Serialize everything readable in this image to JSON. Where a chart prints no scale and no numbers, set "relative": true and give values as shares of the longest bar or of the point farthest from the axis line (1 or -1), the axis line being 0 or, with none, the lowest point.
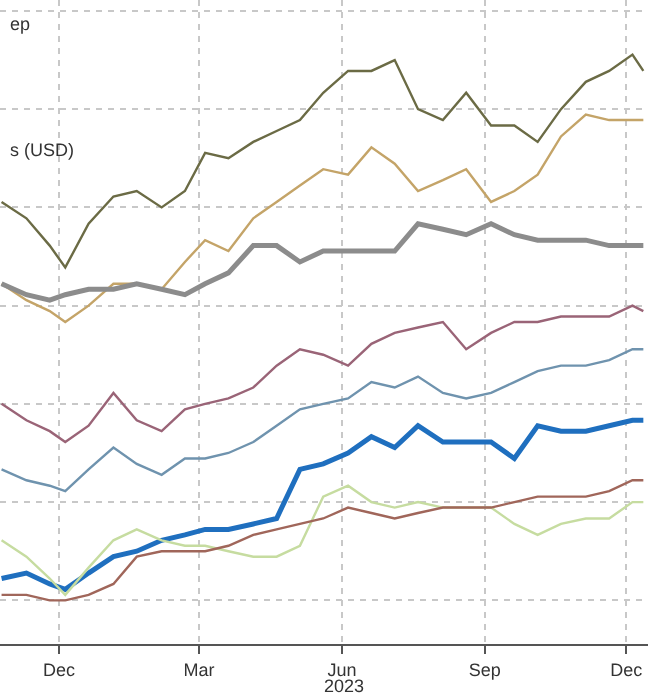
{
  "chart_data": {
    "type": "line",
    "relative": true,
    "grid": true,
    "x": [
      "2022-10-25",
      "2022-11-10",
      "2022-11-25",
      "2022-12-05",
      "2022-12-20",
      "2023-01-05",
      "2023-01-20",
      "2023-02-05",
      "2023-02-20",
      "2023-03-05",
      "2023-03-20",
      "2023-04-05",
      "2023-04-20",
      "2023-05-05",
      "2023-05-20",
      "2023-06-05",
      "2023-06-20",
      "2023-07-05",
      "2023-07-20",
      "2023-08-05",
      "2023-08-20",
      "2023-09-05",
      "2023-09-20",
      "2023-10-05",
      "2023-10-20",
      "2023-11-05",
      "2023-11-20",
      "2023-12-05",
      "2023-12-12"
    ],
    "xlim": [
      "2022-10-24",
      "2023-12-15"
    ],
    "xticks": [
      {
        "value": "2022-12-01",
        "label": "Dec"
      },
      {
        "value": "2023-03-01",
        "label": "Mar"
      },
      {
        "value": "2023-06-01",
        "label": "Jun"
      },
      {
        "value": "2023-09-01",
        "label": "Sep"
      },
      {
        "value": "2023-12-01",
        "label": "Dec"
      }
    ],
    "annotations": [
      "ep",
      "s (USD)",
      "2023"
    ],
    "series": [
      {
        "color": "#6b6b45",
        "values": [
          0.73,
          0.7,
          0.65,
          0.61,
          0.69,
          0.74,
          0.75,
          0.72,
          0.75,
          0.82,
          0.81,
          0.84,
          0.86,
          0.88,
          0.93,
          0.97,
          0.97,
          0.99,
          0.9,
          0.88,
          0.93,
          0.87,
          0.87,
          0.84,
          0.9,
          0.95,
          0.97,
          1.0,
          0.97
        ]
      },
      {
        "color": "#c4a468",
        "values": [
          0.58,
          0.55,
          0.53,
          0.51,
          0.54,
          0.58,
          0.58,
          0.57,
          0.62,
          0.66,
          0.64,
          0.7,
          0.73,
          0.76,
          0.79,
          0.78,
          0.83,
          0.8,
          0.75,
          0.77,
          0.79,
          0.73,
          0.75,
          0.78,
          0.85,
          0.89,
          0.88,
          0.88,
          0.88
        ]
      },
      {
        "color": "#8c8c8c",
        "values": [
          0.58,
          0.56,
          0.55,
          0.56,
          0.57,
          0.57,
          0.58,
          0.57,
          0.56,
          0.58,
          0.6,
          0.65,
          0.65,
          0.62,
          0.64,
          0.64,
          0.64,
          0.64,
          0.69,
          0.68,
          0.67,
          0.69,
          0.67,
          0.66,
          0.66,
          0.66,
          0.65,
          0.65,
          0.65
        ]
      },
      {
        "color": "#9a6477",
        "values": [
          0.36,
          0.33,
          0.31,
          0.29,
          0.32,
          0.38,
          0.33,
          0.31,
          0.35,
          0.36,
          0.37,
          0.39,
          0.43,
          0.46,
          0.45,
          0.43,
          0.47,
          0.49,
          0.5,
          0.51,
          0.46,
          0.49,
          0.51,
          0.51,
          0.52,
          0.52,
          0.52,
          0.54,
          0.53
        ]
      },
      {
        "color": "#6f93ae",
        "values": [
          0.24,
          0.22,
          0.21,
          0.2,
          0.24,
          0.28,
          0.25,
          0.23,
          0.26,
          0.26,
          0.27,
          0.29,
          0.32,
          0.35,
          0.36,
          0.37,
          0.4,
          0.39,
          0.41,
          0.38,
          0.37,
          0.38,
          0.4,
          0.42,
          0.43,
          0.43,
          0.44,
          0.46,
          0.46
        ]
      },
      {
        "color": "#1f6fbf",
        "values": [
          0.04,
          0.05,
          0.03,
          0.02,
          0.05,
          0.08,
          0.09,
          0.11,
          0.12,
          0.13,
          0.13,
          0.14,
          0.15,
          0.24,
          0.25,
          0.27,
          0.3,
          0.28,
          0.32,
          0.29,
          0.29,
          0.29,
          0.26,
          0.32,
          0.31,
          0.31,
          0.32,
          0.33,
          0.33
        ]
      },
      {
        "color": "#c6dca0",
        "values": [
          0.11,
          0.08,
          0.04,
          0.01,
          0.06,
          0.11,
          0.13,
          0.11,
          0.1,
          0.1,
          0.09,
          0.08,
          0.08,
          0.1,
          0.19,
          0.21,
          0.18,
          0.17,
          0.18,
          0.17,
          0.17,
          0.17,
          0.14,
          0.12,
          0.14,
          0.15,
          0.15,
          0.18,
          0.18
        ]
      },
      {
        "color": "#a0665a",
        "values": [
          0.01,
          0.01,
          0.0,
          0.0,
          0.01,
          0.03,
          0.08,
          0.09,
          0.09,
          0.09,
          0.1,
          0.12,
          0.13,
          0.14,
          0.15,
          0.17,
          0.16,
          0.15,
          0.16,
          0.17,
          0.17,
          0.17,
          0.18,
          0.19,
          0.19,
          0.19,
          0.2,
          0.22,
          0.22
        ]
      }
    ]
  }
}
